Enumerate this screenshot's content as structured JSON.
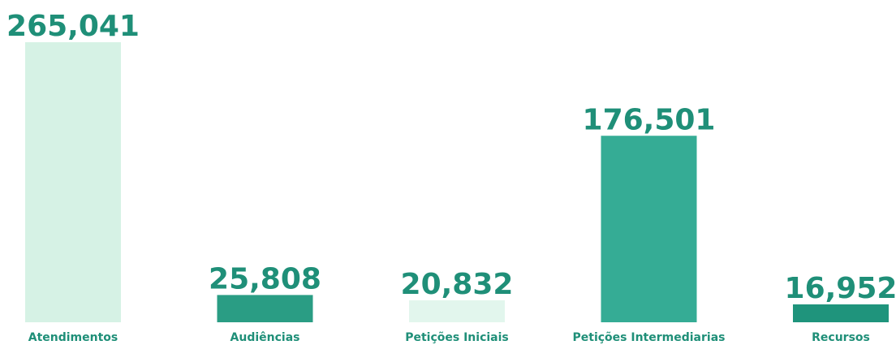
{
  "chart_data": {
    "type": "bar",
    "categories": [
      "Atendimentos",
      "Audiências",
      "Petições Iniciais",
      "Petições Intermediarias",
      "Recursos"
    ],
    "values": [
      265041,
      25808,
      20832,
      176501,
      16952
    ],
    "value_labels": [
      "265,041",
      "25,808",
      "20,832",
      "176,501",
      "16,952"
    ],
    "colors": [
      "#d6f2e5",
      "#2a9d84",
      "#e2f6ed",
      "#35ac95",
      "#1f947c"
    ],
    "label_color": "#1f8f78",
    "ylim": [
      0,
      265041
    ]
  }
}
